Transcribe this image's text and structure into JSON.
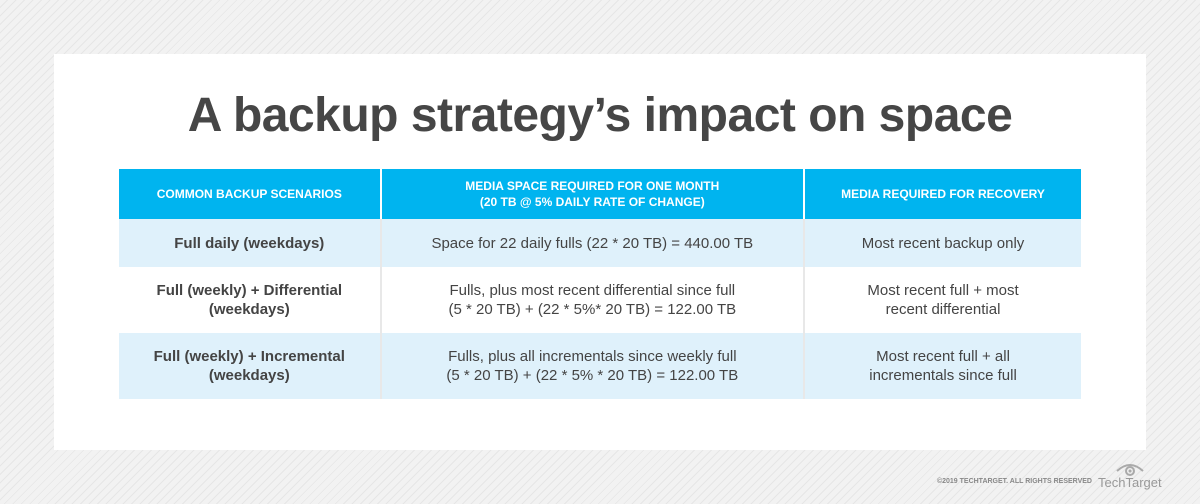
{
  "title": "A backup strategy’s impact on space",
  "headers": [
    "Common backup scenarios",
    "Media space required for one month",
    "(20 TB @ 5% daily rate of change)",
    "Media required for recovery"
  ],
  "rows": [
    {
      "scenario": [
        "Full daily (weekdays)"
      ],
      "space": [
        "Space for 22 daily fulls (22 * 20 TB) = 440.00 TB"
      ],
      "recovery": [
        "Most recent backup only"
      ]
    },
    {
      "scenario": [
        "Full (weekly) + Differential",
        "(weekdays)"
      ],
      "space": [
        "Fulls, plus most recent differential since full",
        "(5 * 20 TB) + (22 * 5%* 20 TB) = 122.00 TB"
      ],
      "recovery": [
        "Most recent full + most",
        "recent differential"
      ]
    },
    {
      "scenario": [
        "Full (weekly) + Incremental",
        "(weekdays)"
      ],
      "space": [
        "Fulls, plus all incrementals since weekly full",
        "(5 * 20 TB) + (22 * 5% * 20 TB) = 122.00 TB"
      ],
      "recovery": [
        "Most recent full + all",
        "incrementals since full"
      ]
    }
  ],
  "footer": {
    "copyright": "©2019 TECHTARGET. ALL RIGHTS RESERVED",
    "logo": "TechTarget"
  }
}
